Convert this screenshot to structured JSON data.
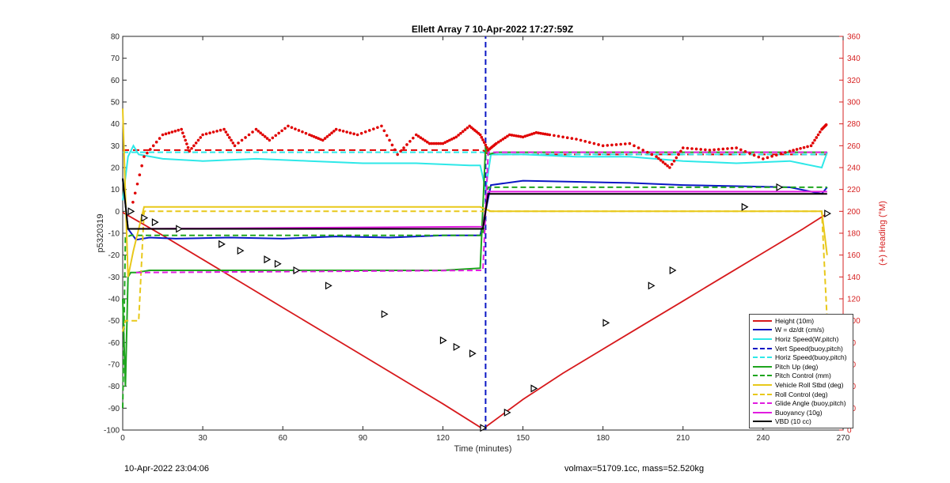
{
  "title": "Ellett Array 7 10-Apr-2022 17:27:59Z",
  "footer": {
    "left": "10-Apr-2022 23:04:06",
    "right": "volmax=51709.1cc, mass=52.520kg"
  },
  "chart_data": {
    "type": "line",
    "title": "Ellett Array 7 10-Apr-2022 17:27:59Z",
    "xlabel": "Time (minutes)",
    "ylabel": "p5320319",
    "ylabel_right": "(+) Heading (°M)",
    "xlim": [
      0,
      270
    ],
    "ylim": [
      -100,
      80
    ],
    "ylim_right": [
      0,
      360
    ],
    "xticks": [
      0,
      30,
      60,
      90,
      120,
      150,
      180,
      210,
      240,
      270
    ],
    "yticks": [
      -100,
      -90,
      -80,
      -70,
      -60,
      -50,
      -40,
      -30,
      -20,
      -10,
      0,
      10,
      20,
      30,
      40,
      50,
      60,
      70,
      80
    ],
    "yticks_right": [
      0,
      20,
      40,
      60,
      80,
      100,
      120,
      140,
      160,
      180,
      200,
      220,
      240,
      260,
      280,
      300,
      320,
      340,
      360
    ],
    "grid": false,
    "legend_position": "bottom-right",
    "colors": {
      "red": "#d7191c",
      "blue": "#0a17c4",
      "cyan": "#2ee8e8",
      "green": "#1ea51e",
      "yellow": "#e8c81a",
      "magenta": "#e11de0",
      "black": "#000000",
      "heading": "#e00000"
    },
    "series": [
      {
        "name": "Height (10m)",
        "color": "#d7191c",
        "style": "solid",
        "x": [
          0,
          15,
          30,
          45,
          60,
          75,
          90,
          105,
          120,
          135,
          150,
          165,
          180,
          195,
          210,
          225,
          240,
          255,
          264
        ],
        "y": [
          -0.5,
          -11,
          -22,
          -33,
          -44,
          -55,
          -66,
          -77,
          -88,
          -99.5,
          -86,
          -74,
          -63,
          -52,
          -41,
          -30,
          -19,
          -8,
          -1
        ]
      },
      {
        "name": "W = dz/dt (cm/s)",
        "color": "#0a17c4",
        "style": "solid",
        "x": [
          0,
          2,
          5,
          10,
          20,
          40,
          60,
          80,
          100,
          120,
          134,
          136,
          138,
          150,
          170,
          190,
          210,
          230,
          250,
          262,
          264
        ],
        "y": [
          15,
          -8,
          -13,
          -12,
          -12.5,
          -12,
          -12.5,
          -11.5,
          -12,
          -11,
          -11,
          0,
          12,
          14,
          13.5,
          13,
          12,
          11.5,
          11,
          8,
          11
        ]
      },
      {
        "name": "Horiz Speed(W,pitch)",
        "color": "#2ee8e8",
        "style": "solid",
        "x": [
          0,
          2,
          4,
          6,
          15,
          30,
          50,
          70,
          90,
          110,
          130,
          134,
          136,
          138,
          150,
          170,
          190,
          210,
          230,
          250,
          262,
          264
        ],
        "y": [
          5,
          25,
          30,
          26,
          24,
          23,
          24,
          23,
          22,
          22,
          21,
          21,
          10,
          26,
          26,
          25,
          25,
          23,
          22,
          23,
          20,
          27
        ]
      },
      {
        "name": "Vert Speed(buoy,pitch)",
        "color": "#0a17c4",
        "style": "dashed",
        "x": [
          136,
          136,
          136
        ],
        "y": [
          -100,
          -28,
          80
        ]
      },
      {
        "name": "Horiz Speed(buoy,pitch)",
        "color": "#2ee8e8",
        "style": "dashed",
        "x": [
          0,
          5,
          135,
          137,
          264
        ],
        "y": [
          27,
          27,
          27,
          26,
          26
        ]
      },
      {
        "name": "Pitch Up (deg)",
        "color": "#1ea51e",
        "style": "solid",
        "x": [
          0,
          1,
          2,
          3,
          5,
          10,
          30,
          60,
          90,
          120,
          134,
          136,
          137,
          140,
          264
        ],
        "y": [
          -40,
          -80,
          -30,
          -28,
          -28,
          -27,
          -27,
          -27,
          -27,
          -27,
          -26,
          30,
          26,
          27,
          27
        ]
      },
      {
        "name": "Pitch Control (mm)",
        "color": "#1ea51e",
        "style": "dashed",
        "x": [
          0,
          1,
          3,
          135,
          137,
          264
        ],
        "y": [
          -90,
          -12,
          -11,
          -11,
          11,
          11
        ]
      },
      {
        "name": "Vehicle Roll Stbd (deg)",
        "color": "#e8c81a",
        "style": "solid",
        "x": [
          0,
          2,
          4,
          8,
          20,
          60,
          100,
          134,
          138,
          150,
          180,
          220,
          262,
          264
        ],
        "y": [
          47,
          -30,
          -18,
          2,
          2,
          2,
          2,
          2,
          0,
          0,
          0,
          0,
          0,
          -20
        ]
      },
      {
        "name": "Roll Control (deg)",
        "color": "#e8c81a",
        "style": "dashed",
        "x": [
          0,
          1,
          3,
          6,
          8,
          20,
          60,
          100,
          134,
          138,
          200,
          262,
          264
        ],
        "y": [
          -55,
          -50,
          -50,
          -50,
          0,
          0,
          0,
          0,
          0,
          0,
          0,
          0,
          -50
        ]
      },
      {
        "name": "Glide Angle (buoy,pitch)",
        "color": "#e11de0",
        "style": "dashed",
        "x": [
          5,
          135,
          137,
          264
        ],
        "y": [
          -28,
          -27,
          27,
          27
        ]
      },
      {
        "name": "Buoyancy (10g)",
        "color": "#e11de0",
        "style": "solid",
        "x": [
          3,
          135,
          137,
          264
        ],
        "y": [
          -8,
          -7,
          9,
          9
        ]
      },
      {
        "name": "VBD (10 cc)",
        "color": "#000000",
        "style": "solid",
        "x": [
          0,
          2,
          135,
          137,
          264
        ],
        "y": [
          15,
          -8,
          -8,
          8,
          8
        ]
      }
    ],
    "heading_series": {
      "axis": "right",
      "color": "#e00000",
      "style": "dotted",
      "x": [
        3,
        8,
        15,
        22,
        25,
        30,
        38,
        42,
        50,
        55,
        62,
        70,
        75,
        80,
        88,
        97,
        103,
        110,
        115,
        120,
        125,
        130,
        134,
        137,
        140,
        145,
        150,
        155,
        160,
        170,
        180,
        190,
        200,
        205,
        210,
        220,
        230,
        240,
        250,
        258,
        262,
        264
      ],
      "y": [
        200,
        250,
        270,
        275,
        255,
        270,
        275,
        260,
        275,
        265,
        278,
        270,
        265,
        275,
        270,
        278,
        252,
        270,
        262,
        262,
        268,
        278,
        270,
        256,
        262,
        270,
        268,
        272,
        270,
        266,
        260,
        262,
        250,
        240,
        258,
        256,
        258,
        248,
        255,
        260,
        275,
        280
      ]
    },
    "heading_reference": {
      "name": "",
      "color": "#e00000",
      "style": "dashed",
      "x": [
        0,
        135,
        137,
        264
      ],
      "y": [
        256,
        256,
        252,
        252
      ]
    },
    "markers": {
      "color": "#000000",
      "x": [
        3,
        8,
        12,
        21,
        37,
        44,
        54,
        58,
        65,
        77,
        98,
        120,
        125,
        131,
        135,
        144,
        154,
        181,
        198,
        206,
        233,
        246,
        264
      ],
      "y": [
        0,
        -3,
        -5,
        -8,
        -15,
        -18,
        -22,
        -24,
        -27,
        -34,
        -47,
        -59,
        -62,
        -65,
        -99,
        -92,
        -81,
        -51,
        -34,
        -27,
        2,
        11,
        -1
      ]
    }
  }
}
